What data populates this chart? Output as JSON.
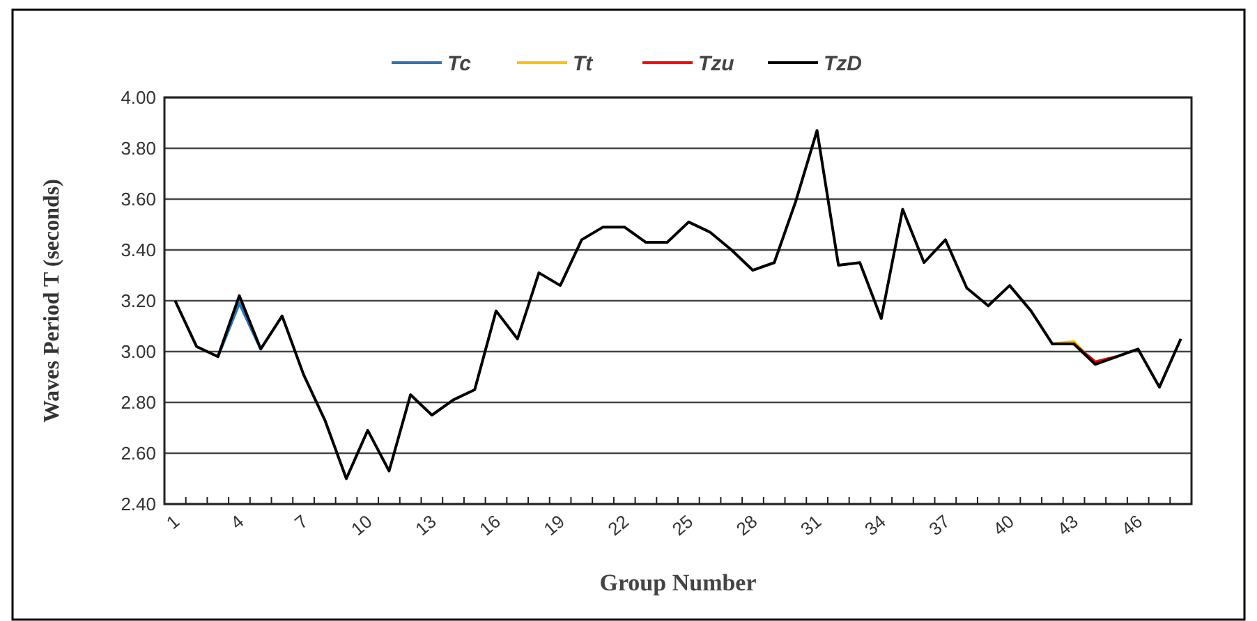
{
  "chart_data": {
    "type": "line",
    "xlabel": "Group Number",
    "ylabel": "Waves Period  T (seconds)",
    "categories": [
      "1",
      null,
      null,
      "4",
      null,
      null,
      "7",
      null,
      null,
      "10",
      null,
      null,
      "13",
      null,
      null,
      "16",
      null,
      null,
      "19",
      null,
      null,
      "22",
      null,
      null,
      "25",
      null,
      null,
      "28",
      null,
      null,
      "31",
      null,
      null,
      "34",
      null,
      null,
      "37",
      null,
      null,
      "40",
      null,
      null,
      "43",
      null,
      null,
      "46",
      null,
      null
    ],
    "series": [
      {
        "name": "Tc",
        "color": "#2e75b6",
        "values": [
          null,
          null,
          2.98,
          3.19,
          3.01,
          null,
          null,
          null,
          null,
          null,
          null,
          null,
          null,
          null,
          null,
          null,
          null,
          null,
          null,
          null,
          null,
          null,
          null,
          null,
          null,
          null,
          null,
          null,
          null,
          null,
          null,
          null,
          null,
          null,
          null,
          null,
          null,
          null,
          null,
          null,
          null,
          null,
          null,
          null,
          null,
          null,
          null,
          null
        ]
      },
      {
        "name": "Tt",
        "color": "#ffc000",
        "values": [
          null,
          null,
          null,
          null,
          null,
          null,
          null,
          null,
          null,
          null,
          null,
          null,
          null,
          null,
          null,
          null,
          null,
          null,
          null,
          null,
          null,
          null,
          null,
          null,
          null,
          null,
          null,
          null,
          null,
          null,
          null,
          null,
          null,
          null,
          null,
          null,
          null,
          null,
          null,
          null,
          null,
          3.03,
          3.04,
          2.95,
          null,
          null,
          null,
          null
        ]
      },
      {
        "name": "Tzu",
        "color": "#ff0000",
        "values": [
          null,
          null,
          null,
          null,
          null,
          null,
          null,
          null,
          null,
          null,
          null,
          null,
          null,
          null,
          null,
          null,
          null,
          null,
          null,
          null,
          null,
          null,
          null,
          null,
          null,
          null,
          null,
          null,
          null,
          null,
          null,
          null,
          null,
          null,
          null,
          null,
          null,
          null,
          null,
          null,
          null,
          null,
          3.03,
          2.96,
          2.98,
          null,
          null,
          null
        ]
      },
      {
        "name": "TzD",
        "color": "#000000",
        "values": [
          3.2,
          3.02,
          2.98,
          3.22,
          3.01,
          3.14,
          2.91,
          2.73,
          2.5,
          2.69,
          2.53,
          2.83,
          2.75,
          2.81,
          2.85,
          3.16,
          3.05,
          3.31,
          3.26,
          3.44,
          3.49,
          3.49,
          3.43,
          3.43,
          3.51,
          3.47,
          3.4,
          3.32,
          3.35,
          3.59,
          3.87,
          3.34,
          3.35,
          3.13,
          3.56,
          3.35,
          3.44,
          3.25,
          3.18,
          3.26,
          3.16,
          3.03,
          3.03,
          2.95,
          2.98,
          3.01,
          2.86,
          3.05
        ]
      }
    ],
    "ylim": [
      2.4,
      4.0
    ],
    "yticks": [
      {
        "value": 2.4,
        "label": "2.40"
      },
      {
        "value": 2.6,
        "label": "2.60"
      },
      {
        "value": 2.8,
        "label": "2.80"
      },
      {
        "value": 3.0,
        "label": "3.00"
      },
      {
        "value": 3.2,
        "label": "3.20"
      },
      {
        "value": 3.4,
        "label": "3.40"
      },
      {
        "value": 3.6,
        "label": "3.60"
      },
      {
        "value": 3.8,
        "label": "3.80"
      },
      {
        "value": 4.0,
        "label": "4.00"
      }
    ],
    "grid": "y",
    "legend": "top",
    "marker": "none",
    "line_style": "solid"
  }
}
